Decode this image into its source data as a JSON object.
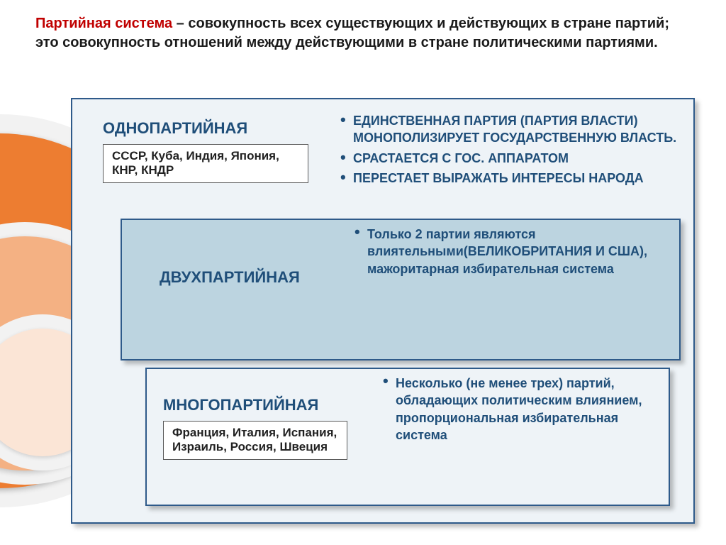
{
  "header": {
    "term": "Партийная система",
    "definition": " – совокупность всех существующих и действующих в стране партий; это совокупность отношений между действующими в стране политическими партиями."
  },
  "colors": {
    "term_color": "#c00000",
    "text_color": "#1a1a1a",
    "panel_border": "#2e5a8a",
    "title_color": "#1f4e79",
    "panel1_bg": "#eef3f7",
    "panel2_bg": "#bcd4e0",
    "panel3_bg": "#eef3f7",
    "arc1": "#ed7d31",
    "arc2": "#f4b183",
    "arc3": "#fbe5d6"
  },
  "panels": [
    {
      "title": "ОДНОПАРТИЙНАЯ",
      "bullets": [
        "ЕДИНСТВЕННАЯ ПАРТИЯ (ПАРТИЯ ВЛАСТИ) МОНОПОЛИЗИРУЕТ ГОСУДАРСТВЕННУЮ ВЛАСТЬ.",
        "СРАСТАЕТСЯ С ГОС. АППАРАТОМ",
        "ПЕРЕСТАЕТ ВЫРАЖАТЬ  ИНТЕРЕСЫ  НАРОДА"
      ],
      "examples": "СССР, Куба, Индия, Япония, КНР, КНДР"
    },
    {
      "title": "ДВУХПАРТИЙНАЯ",
      "bullets": [
        "Только 2 партии являются влиятельными(ВЕЛИКОБРИТАНИЯ И США), мажоритарная избирательная система"
      ],
      "examples": ""
    },
    {
      "title": "МНОГОПАРТИЙНАЯ",
      "bullets": [
        "Несколько (не менее трех) партий, обладающих политическим влиянием, пропорциональная избирательная система"
      ],
      "examples": "Франция, Италия, Испания, Израиль, Россия, Швеция"
    }
  ],
  "fonts": {
    "header_size_pt": 15,
    "title_size_pt": 17,
    "bullet_size_pt": 14,
    "example_size_pt": 13
  }
}
